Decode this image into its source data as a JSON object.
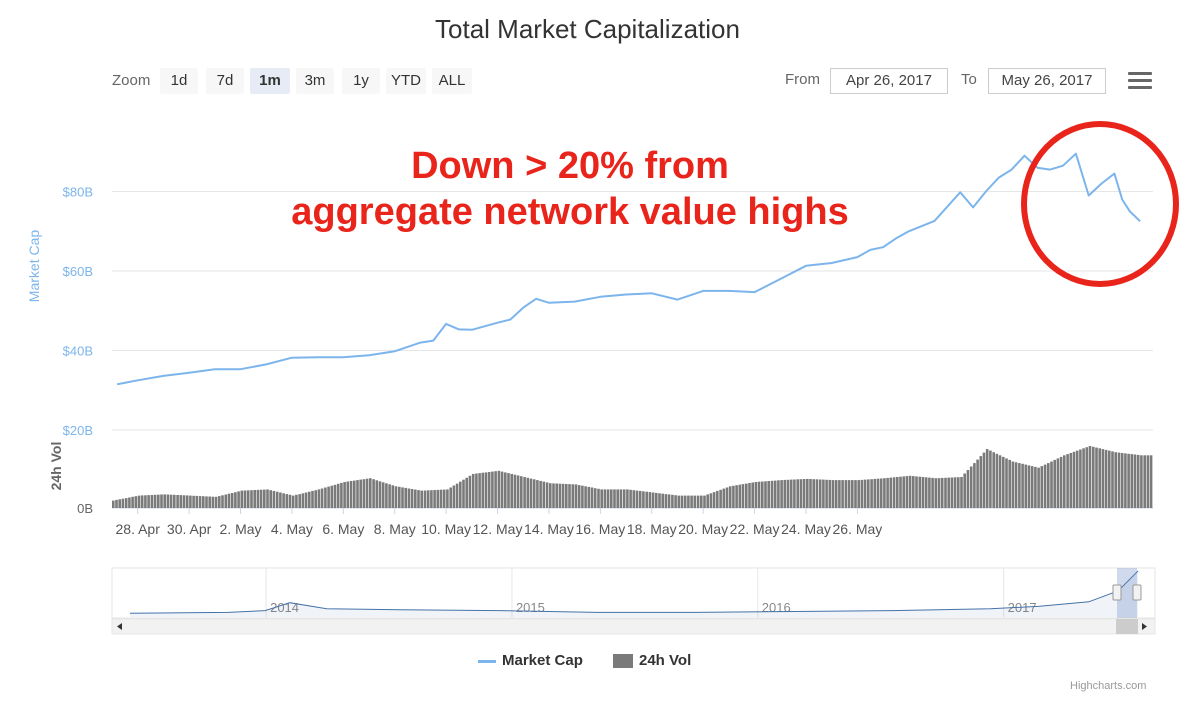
{
  "title": "Total Market Capitalization",
  "zoom": {
    "label": "Zoom",
    "buttons": [
      "1d",
      "7d",
      "1m",
      "3m",
      "1y",
      "YTD",
      "ALL"
    ],
    "active": "1m"
  },
  "range": {
    "from_label": "From",
    "from_value": "Apr 26, 2017",
    "to_label": "To",
    "to_value": "May 26, 2017"
  },
  "annotation": {
    "line1": "Down > 20% from",
    "line2": "aggregate network value highs",
    "color": "#e8241b"
  },
  "legend": {
    "market_cap": "Market Cap",
    "volume": "24h Vol"
  },
  "credit": "Highcharts.com",
  "colors": {
    "market_cap": "#7cb5ec",
    "volume": "#7a7a7a",
    "navigator_line": "#4572a7"
  },
  "chart_data": [
    {
      "type": "line",
      "title": "Total Market Capitalization",
      "ylabel": "Market Cap",
      "y_ticks": [
        "$20B",
        "$40B",
        "$60B",
        "$80B"
      ],
      "ylim": [
        20,
        100
      ],
      "y_unit": "B USD",
      "x_ticks": [
        "28. Apr",
        "30. Apr",
        "2. May",
        "4. May",
        "6. May",
        "8. May",
        "10. May",
        "12. May",
        "14. May",
        "16. May",
        "18. May",
        "20. May",
        "22. May",
        "24. May",
        "26. May"
      ],
      "x_days": [
        27.2,
        28,
        29,
        30,
        31,
        32,
        33,
        34,
        35,
        36,
        37,
        38,
        39,
        39.5,
        40,
        40.5,
        41,
        42,
        42.5,
        43,
        43.5,
        44,
        45,
        46,
        47,
        48,
        49,
        50,
        51,
        52,
        53,
        54,
        55,
        56,
        56.5,
        57,
        57.5,
        58,
        59,
        60,
        60.5,
        61,
        61.5,
        62,
        62.5,
        63,
        63.5,
        64,
        64.5,
        65,
        65.5,
        66,
        66.3,
        66.6,
        67
      ],
      "series": [
        {
          "name": "Market Cap",
          "values": [
            31.5,
            32.5,
            33.6,
            34.4,
            35.3,
            35.3,
            36.5,
            38.2,
            38.3,
            38.3,
            38.8,
            39.8,
            42.0,
            42.5,
            46.7,
            45.3,
            45.2,
            47.0,
            47.8,
            50.8,
            53.0,
            52.0,
            52.3,
            53.5,
            54.1,
            54.4,
            52.8,
            55.0,
            55.0,
            54.7,
            58.0,
            61.3,
            62.0,
            63.5,
            65.3,
            66.0,
            68.2,
            70.0,
            72.6,
            79.8,
            76.0,
            80.0,
            83.5,
            85.5,
            89.0,
            86.0,
            85.5,
            86.5,
            89.5,
            79.0,
            82.0,
            84.5,
            78.0,
            75.0,
            72.5
          ]
        }
      ]
    },
    {
      "type": "bar",
      "ylabel": "24h Vol",
      "y_ticks": [
        "0B"
      ],
      "x_days": [
        27,
        28,
        29,
        30,
        31,
        32,
        33,
        34,
        35,
        36,
        37,
        38,
        39,
        40,
        41,
        42,
        43,
        44,
        45,
        46,
        47,
        48,
        49,
        50,
        51,
        52,
        53,
        54,
        55,
        56,
        57,
        58,
        59,
        60,
        61,
        62,
        63,
        64,
        65,
        66,
        67
      ],
      "series": [
        {
          "name": "24h Vol",
          "values_relative": [
            0.12,
            0.2,
            0.22,
            0.2,
            0.18,
            0.28,
            0.3,
            0.2,
            0.3,
            0.42,
            0.48,
            0.35,
            0.28,
            0.3,
            0.55,
            0.6,
            0.5,
            0.4,
            0.38,
            0.3,
            0.3,
            0.25,
            0.2,
            0.2,
            0.35,
            0.42,
            0.45,
            0.47,
            0.45,
            0.45,
            0.48,
            0.52,
            0.48,
            0.5,
            0.95,
            0.75,
            0.65,
            0.85,
            1.0,
            0.9,
            0.85
          ]
        }
      ]
    },
    {
      "type": "area",
      "role": "navigator",
      "x_ticks": [
        "2014",
        "2015",
        "2016",
        "2017"
      ],
      "x_years": [
        2013.3,
        2013.7,
        2013.85,
        2013.95,
        2014.1,
        2014.4,
        2014.8,
        2015.2,
        2015.6,
        2016.0,
        2016.4,
        2016.8,
        2017.0,
        2017.2,
        2017.32,
        2017.4
      ],
      "values_relative": [
        0.04,
        0.06,
        0.1,
        0.28,
        0.14,
        0.12,
        0.1,
        0.06,
        0.06,
        0.08,
        0.1,
        0.14,
        0.2,
        0.3,
        0.55,
        1.0
      ]
    }
  ]
}
